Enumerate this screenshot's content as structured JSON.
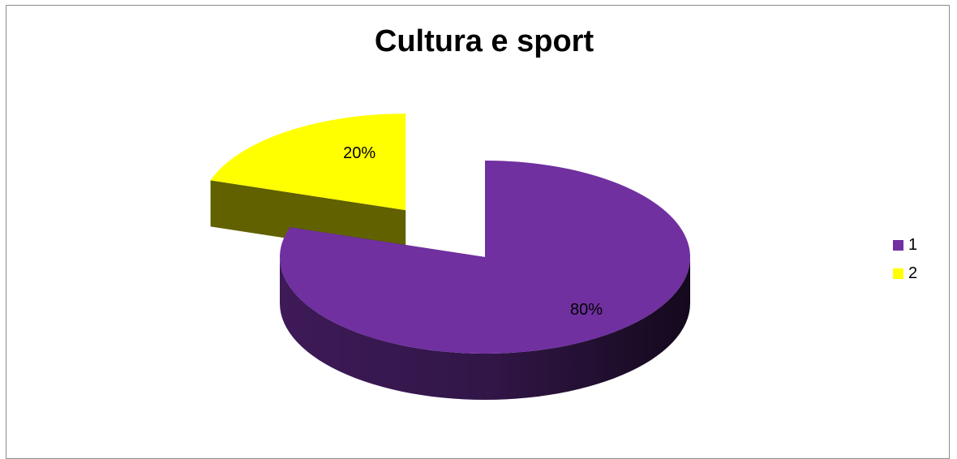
{
  "chart_data": {
    "type": "pie",
    "title": "Cultura e sport",
    "categories": [
      "1",
      "2"
    ],
    "values": [
      80,
      20
    ],
    "labels": [
      "80%",
      "20%"
    ],
    "colors": [
      "#7030a0",
      "#ffff00"
    ],
    "exploded": [
      "2"
    ],
    "three_d": true,
    "legend": {
      "position": "right",
      "entries": [
        "1",
        "2"
      ]
    }
  }
}
